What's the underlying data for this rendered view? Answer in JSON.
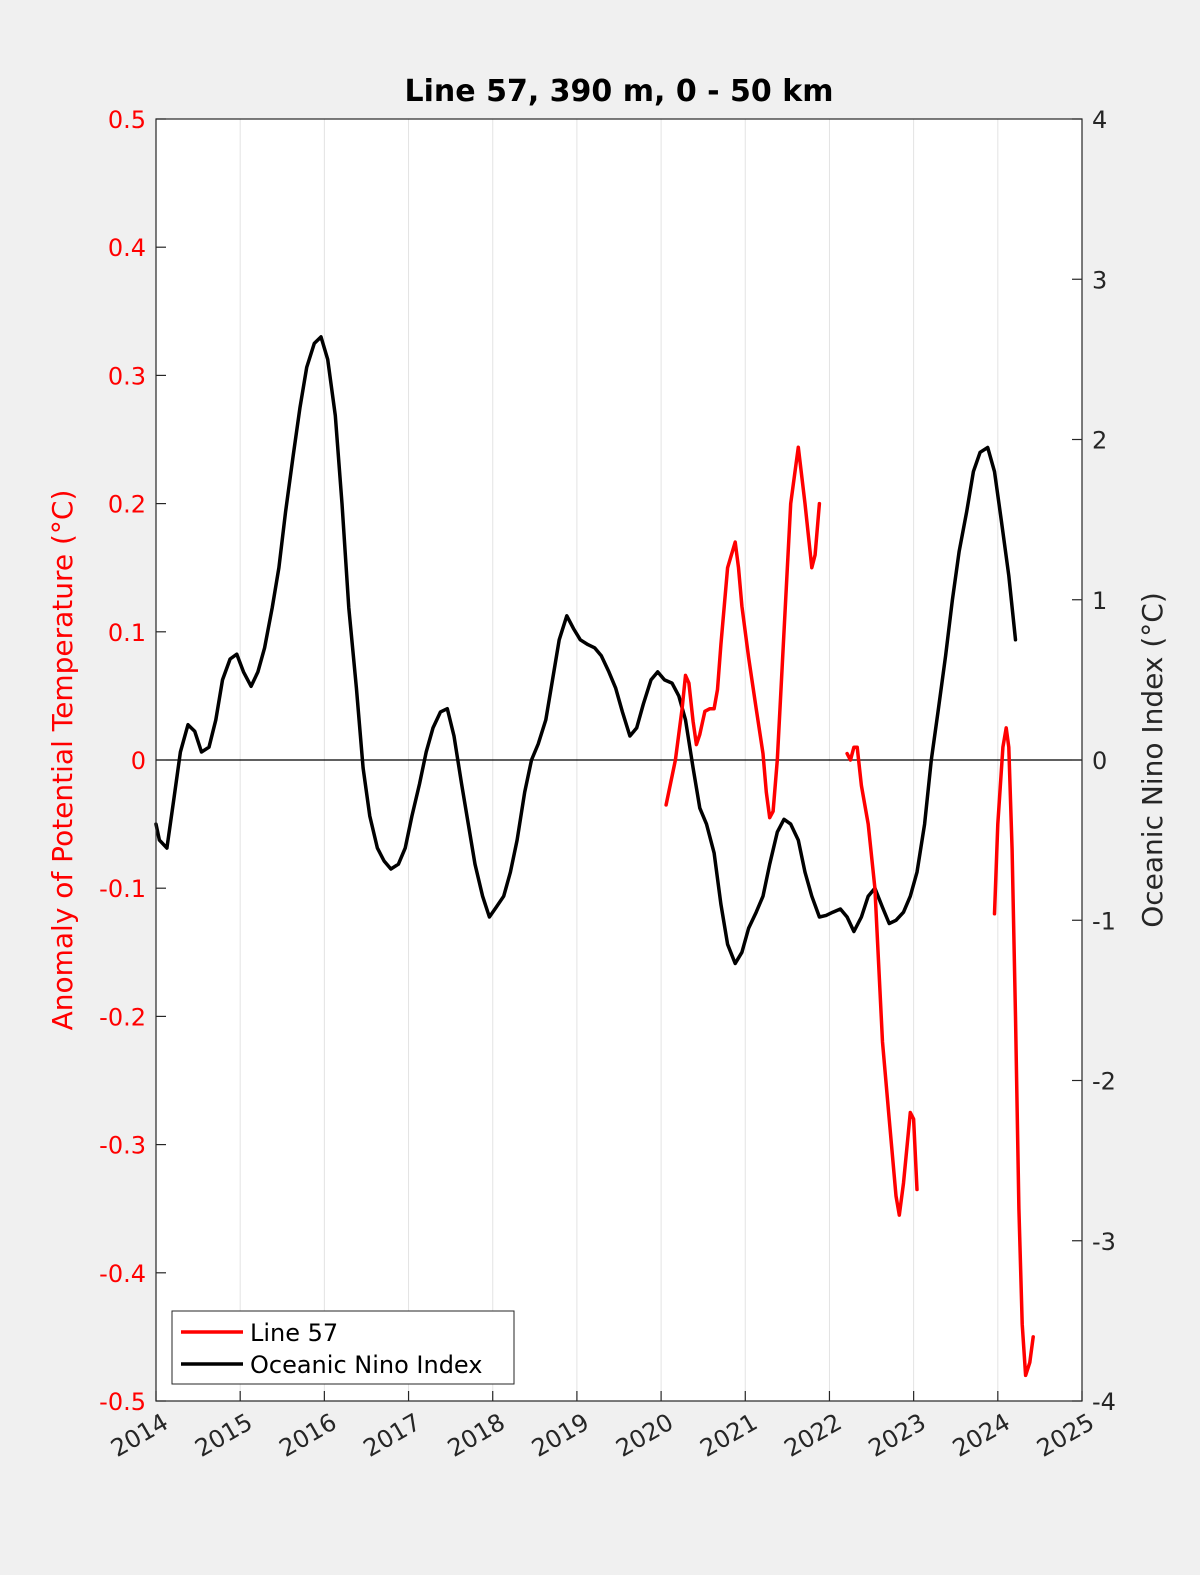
{
  "chart_data": {
    "type": "line",
    "title": "Line 57, 390 m, 0 - 50 km",
    "xlabel": "",
    "ylabel_left": "Anomaly of Potential Temperature (°C)",
    "ylabel_right": "Oceanic Nino Index (°C)",
    "xlim": [
      2014,
      2025
    ],
    "ylim_left": [
      -0.5,
      0.5
    ],
    "ylim_right": [
      -4,
      4
    ],
    "x_ticks": [
      "2014",
      "2015",
      "2016",
      "2017",
      "2018",
      "2019",
      "2020",
      "2021",
      "2022",
      "2023",
      "2024",
      "2025"
    ],
    "y_ticks_left": [
      "0.5",
      "0.4",
      "0.3",
      "0.2",
      "0.1",
      "0",
      "-0.1",
      "-0.2",
      "-0.3",
      "-0.4",
      "-0.5"
    ],
    "y_ticks_right": [
      "4",
      "3",
      "2",
      "1",
      "0",
      "-1",
      "-2",
      "-3",
      "-4"
    ],
    "grid": "vertical",
    "zero_line": true,
    "legend_position": "bottom-left",
    "colors": {
      "line57": "#ff0000",
      "oni": "#000000",
      "left_axis": "#ff0000",
      "right_axis": "#262626"
    },
    "series": [
      {
        "name": "Line 57",
        "axis": "left",
        "segments": [
          [
            [
              2020.06,
              -0.035
            ],
            [
              2020.17,
              0.0
            ],
            [
              2020.25,
              0.04
            ],
            [
              2020.29,
              0.066
            ],
            [
              2020.33,
              0.06
            ],
            [
              2020.38,
              0.03
            ],
            [
              2020.42,
              0.012
            ],
            [
              2020.46,
              0.02
            ],
            [
              2020.52,
              0.038
            ],
            [
              2020.58,
              0.04
            ],
            [
              2020.63,
              0.04
            ],
            [
              2020.67,
              0.055
            ],
            [
              2020.71,
              0.09
            ],
            [
              2020.79,
              0.15
            ],
            [
              2020.88,
              0.17
            ],
            [
              2020.92,
              0.15
            ],
            [
              2020.96,
              0.12
            ],
            [
              2021.04,
              0.08
            ],
            [
              2021.13,
              0.04
            ],
            [
              2021.21,
              0.005
            ],
            [
              2021.25,
              -0.025
            ],
            [
              2021.29,
              -0.045
            ],
            [
              2021.33,
              -0.04
            ],
            [
              2021.38,
              0.0
            ],
            [
              2021.46,
              0.1
            ],
            [
              2021.54,
              0.2
            ],
            [
              2021.63,
              0.244
            ],
            [
              2021.71,
              0.2
            ],
            [
              2021.79,
              0.15
            ],
            [
              2021.83,
              0.16
            ],
            [
              2021.88,
              0.2
            ]
          ],
          [
            [
              2022.21,
              0.005
            ],
            [
              2022.25,
              0.0
            ],
            [
              2022.29,
              0.01
            ],
            [
              2022.33,
              0.01
            ],
            [
              2022.38,
              -0.02
            ],
            [
              2022.46,
              -0.05
            ],
            [
              2022.54,
              -0.1
            ],
            [
              2022.63,
              -0.22
            ],
            [
              2022.71,
              -0.28
            ],
            [
              2022.79,
              -0.34
            ],
            [
              2022.83,
              -0.355
            ],
            [
              2022.88,
              -0.33
            ],
            [
              2022.96,
              -0.275
            ],
            [
              2023.0,
              -0.28
            ],
            [
              2023.04,
              -0.335
            ]
          ],
          [
            [
              2023.96,
              -0.12
            ],
            [
              2024.0,
              -0.05
            ],
            [
              2024.06,
              0.01
            ],
            [
              2024.1,
              0.025
            ],
            [
              2024.13,
              0.01
            ],
            [
              2024.17,
              -0.07
            ],
            [
              2024.21,
              -0.2
            ],
            [
              2024.25,
              -0.35
            ],
            [
              2024.29,
              -0.44
            ],
            [
              2024.33,
              -0.48
            ],
            [
              2024.38,
              -0.47
            ],
            [
              2024.42,
              -0.45
            ]
          ]
        ]
      },
      {
        "name": "Oceanic Nino Index",
        "axis": "right",
        "points": [
          [
            2014.0,
            -0.4
          ],
          [
            2014.04,
            -0.5
          ],
          [
            2014.13,
            -0.55
          ],
          [
            2014.21,
            -0.25
          ],
          [
            2014.29,
            0.05
          ],
          [
            2014.38,
            0.22
          ],
          [
            2014.46,
            0.18
          ],
          [
            2014.54,
            0.05
          ],
          [
            2014.63,
            0.08
          ],
          [
            2014.71,
            0.25
          ],
          [
            2014.79,
            0.5
          ],
          [
            2014.88,
            0.63
          ],
          [
            2014.96,
            0.66
          ],
          [
            2015.04,
            0.55
          ],
          [
            2015.13,
            0.46
          ],
          [
            2015.21,
            0.55
          ],
          [
            2015.29,
            0.7
          ],
          [
            2015.38,
            0.95
          ],
          [
            2015.46,
            1.2
          ],
          [
            2015.54,
            1.55
          ],
          [
            2015.63,
            1.9
          ],
          [
            2015.71,
            2.2
          ],
          [
            2015.79,
            2.45
          ],
          [
            2015.88,
            2.6
          ],
          [
            2015.96,
            2.64
          ],
          [
            2016.04,
            2.5
          ],
          [
            2016.13,
            2.15
          ],
          [
            2016.21,
            1.6
          ],
          [
            2016.29,
            0.95
          ],
          [
            2016.38,
            0.45
          ],
          [
            2016.46,
            -0.05
          ],
          [
            2016.54,
            -0.35
          ],
          [
            2016.63,
            -0.55
          ],
          [
            2016.71,
            -0.63
          ],
          [
            2016.79,
            -0.68
          ],
          [
            2016.88,
            -0.65
          ],
          [
            2016.96,
            -0.55
          ],
          [
            2017.04,
            -0.35
          ],
          [
            2017.13,
            -0.15
          ],
          [
            2017.21,
            0.05
          ],
          [
            2017.29,
            0.2
          ],
          [
            2017.38,
            0.3
          ],
          [
            2017.46,
            0.32
          ],
          [
            2017.54,
            0.15
          ],
          [
            2017.63,
            -0.15
          ],
          [
            2017.71,
            -0.4
          ],
          [
            2017.79,
            -0.65
          ],
          [
            2017.88,
            -0.85
          ],
          [
            2017.96,
            -0.98
          ],
          [
            2018.04,
            -0.92
          ],
          [
            2018.13,
            -0.85
          ],
          [
            2018.21,
            -0.7
          ],
          [
            2018.29,
            -0.5
          ],
          [
            2018.38,
            -0.2
          ],
          [
            2018.46,
            0.0
          ],
          [
            2018.54,
            0.1
          ],
          [
            2018.63,
            0.25
          ],
          [
            2018.71,
            0.5
          ],
          [
            2018.79,
            0.75
          ],
          [
            2018.88,
            0.9
          ],
          [
            2018.96,
            0.82
          ],
          [
            2019.04,
            0.75
          ],
          [
            2019.13,
            0.72
          ],
          [
            2019.21,
            0.7
          ],
          [
            2019.29,
            0.65
          ],
          [
            2019.38,
            0.55
          ],
          [
            2019.46,
            0.45
          ],
          [
            2019.54,
            0.3
          ],
          [
            2019.63,
            0.15
          ],
          [
            2019.71,
            0.2
          ],
          [
            2019.79,
            0.35
          ],
          [
            2019.88,
            0.5
          ],
          [
            2019.96,
            0.55
          ],
          [
            2020.04,
            0.5
          ],
          [
            2020.13,
            0.48
          ],
          [
            2020.21,
            0.4
          ],
          [
            2020.29,
            0.25
          ],
          [
            2020.38,
            -0.05
          ],
          [
            2020.46,
            -0.3
          ],
          [
            2020.54,
            -0.4
          ],
          [
            2020.63,
            -0.58
          ],
          [
            2020.71,
            -0.9
          ],
          [
            2020.79,
            -1.15
          ],
          [
            2020.88,
            -1.27
          ],
          [
            2020.96,
            -1.2
          ],
          [
            2021.04,
            -1.05
          ],
          [
            2021.13,
            -0.95
          ],
          [
            2021.21,
            -0.85
          ],
          [
            2021.29,
            -0.65
          ],
          [
            2021.38,
            -0.45
          ],
          [
            2021.46,
            -0.37
          ],
          [
            2021.54,
            -0.4
          ],
          [
            2021.63,
            -0.5
          ],
          [
            2021.71,
            -0.7
          ],
          [
            2021.79,
            -0.85
          ],
          [
            2021.88,
            -0.98
          ],
          [
            2021.96,
            -0.97
          ],
          [
            2022.04,
            -0.95
          ],
          [
            2022.13,
            -0.93
          ],
          [
            2022.21,
            -0.98
          ],
          [
            2022.29,
            -1.07
          ],
          [
            2022.38,
            -0.98
          ],
          [
            2022.46,
            -0.85
          ],
          [
            2022.54,
            -0.8
          ],
          [
            2022.63,
            -0.92
          ],
          [
            2022.71,
            -1.02
          ],
          [
            2022.79,
            -1.0
          ],
          [
            2022.88,
            -0.95
          ],
          [
            2022.96,
            -0.85
          ],
          [
            2023.04,
            -0.7
          ],
          [
            2023.13,
            -0.4
          ],
          [
            2023.21,
            0.0
          ],
          [
            2023.29,
            0.3
          ],
          [
            2023.38,
            0.65
          ],
          [
            2023.46,
            1.0
          ],
          [
            2023.54,
            1.3
          ],
          [
            2023.63,
            1.55
          ],
          [
            2023.71,
            1.8
          ],
          [
            2023.79,
            1.92
          ],
          [
            2023.88,
            1.95
          ],
          [
            2023.96,
            1.8
          ],
          [
            2024.04,
            1.5
          ],
          [
            2024.13,
            1.15
          ],
          [
            2024.21,
            0.75
          ]
        ]
      }
    ]
  }
}
